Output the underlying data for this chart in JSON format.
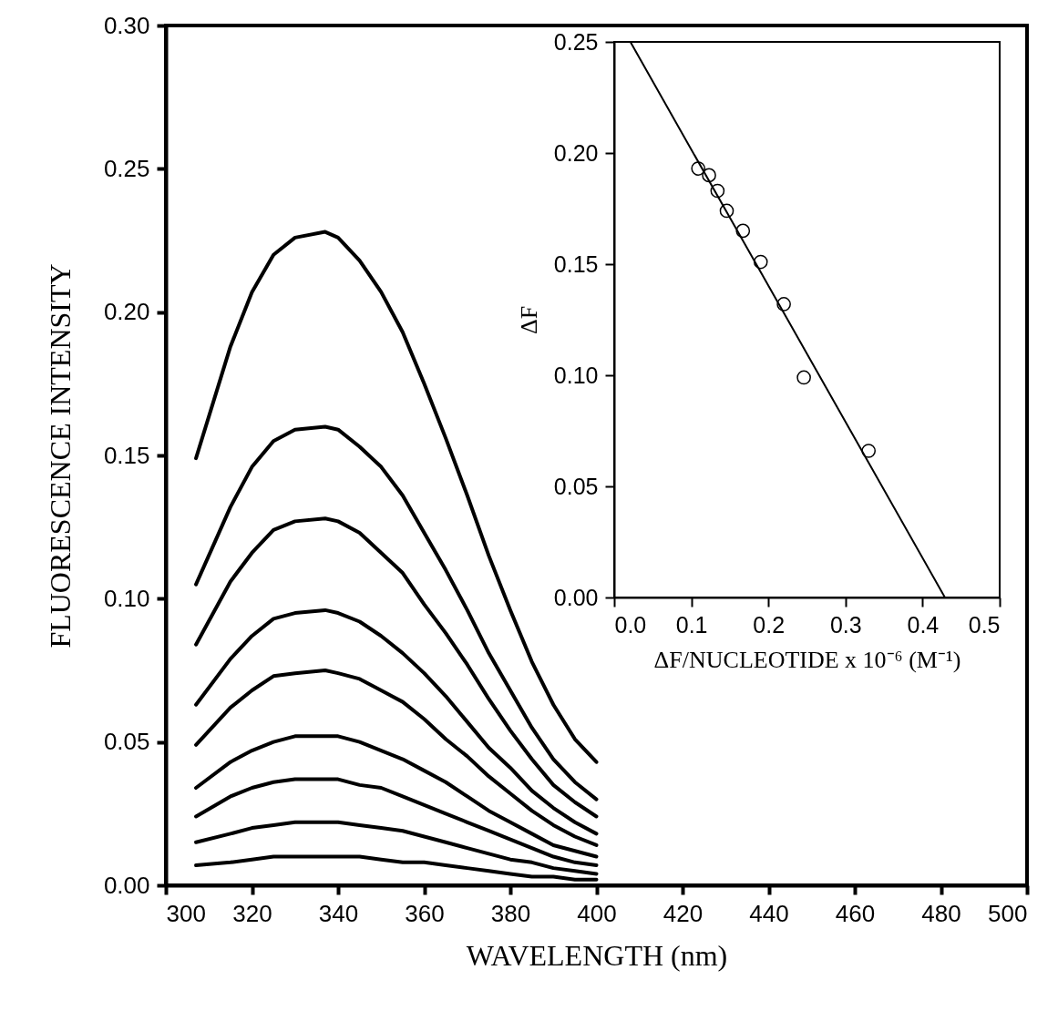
{
  "chart_data": [
    {
      "type": "line",
      "xlabel": "WAVELENGTH  (nm)",
      "ylabel": "FLUORESCENCE  INTENSITY",
      "x": [
        307,
        315,
        320,
        325,
        330,
        337,
        340,
        345,
        350,
        355,
        360,
        365,
        370,
        375,
        380,
        385,
        390,
        395,
        400
      ],
      "xlim": [
        300,
        500
      ],
      "xticks": [
        300,
        320,
        340,
        360,
        380,
        400,
        420,
        440,
        460,
        480,
        500
      ],
      "ylim": [
        0,
        0.3
      ],
      "yticks": [
        {
          "value": 0,
          "label": "0.00"
        },
        {
          "value": 0.05,
          "label": "0.05"
        },
        {
          "value": 0.1,
          "label": "0.10"
        },
        {
          "value": 0.15,
          "label": "0.15"
        },
        {
          "value": 0.2,
          "label": "0.20"
        },
        {
          "value": 0.25,
          "label": "0.25"
        },
        {
          "value": 0.3,
          "label": "0.30"
        }
      ],
      "grid": false,
      "line_style": "solid",
      "series": [
        {
          "color": "#000000",
          "values": [
            0.149,
            0.188,
            0.207,
            0.22,
            0.226,
            0.228,
            0.226,
            0.218,
            0.207,
            0.193,
            0.175,
            0.156,
            0.136,
            0.115,
            0.096,
            0.078,
            0.063,
            0.051,
            0.043
          ]
        },
        {
          "color": "#000000",
          "values": [
            0.105,
            0.132,
            0.146,
            0.155,
            0.159,
            0.16,
            0.159,
            0.153,
            0.146,
            0.136,
            0.123,
            0.11,
            0.096,
            0.081,
            0.068,
            0.055,
            0.044,
            0.036,
            0.03
          ]
        },
        {
          "color": "#000000",
          "values": [
            0.084,
            0.106,
            0.116,
            0.124,
            0.127,
            0.128,
            0.127,
            0.123,
            0.116,
            0.109,
            0.098,
            0.088,
            0.077,
            0.065,
            0.054,
            0.044,
            0.035,
            0.029,
            0.024
          ]
        },
        {
          "color": "#000000",
          "values": [
            0.063,
            0.079,
            0.087,
            0.093,
            0.095,
            0.096,
            0.095,
            0.092,
            0.087,
            0.081,
            0.074,
            0.066,
            0.057,
            0.048,
            0.041,
            0.033,
            0.027,
            0.022,
            0.018
          ]
        },
        {
          "color": "#000000",
          "values": [
            0.049,
            0.062,
            0.068,
            0.073,
            0.074,
            0.075,
            0.074,
            0.072,
            0.068,
            0.064,
            0.058,
            0.051,
            0.045,
            0.038,
            0.032,
            0.026,
            0.021,
            0.017,
            0.014
          ]
        },
        {
          "color": "#000000",
          "values": [
            0.034,
            0.043,
            0.047,
            0.05,
            0.052,
            0.052,
            0.052,
            0.05,
            0.047,
            0.044,
            0.04,
            0.036,
            0.031,
            0.026,
            0.022,
            0.018,
            0.014,
            0.012,
            0.01
          ]
        },
        {
          "color": "#000000",
          "values": [
            0.024,
            0.031,
            0.034,
            0.036,
            0.037,
            0.037,
            0.037,
            0.035,
            0.034,
            0.031,
            0.028,
            0.025,
            0.022,
            0.019,
            0.016,
            0.013,
            0.01,
            0.008,
            0.007
          ]
        },
        {
          "color": "#000000",
          "values": [
            0.015,
            0.018,
            0.02,
            0.021,
            0.022,
            0.022,
            0.022,
            0.021,
            0.02,
            0.019,
            0.017,
            0.015,
            0.013,
            0.011,
            0.009,
            0.008,
            0.006,
            0.005,
            0.004
          ]
        },
        {
          "color": "#000000",
          "values": [
            0.007,
            0.008,
            0.009,
            0.01,
            0.01,
            0.01,
            0.01,
            0.01,
            0.009,
            0.008,
            0.008,
            0.007,
            0.006,
            0.005,
            0.004,
            0.003,
            0.003,
            0.002,
            0.002
          ]
        }
      ]
    },
    {
      "type": "scatter",
      "xlabel": "ΔF/NUCLEOTIDE x 10⁻⁶ (M⁻¹)",
      "ylabel": "ΔF",
      "xlim": [
        0,
        0.5
      ],
      "xticks": [
        {
          "value": 0,
          "label": "0.0"
        },
        {
          "value": 0.1,
          "label": "0.1"
        },
        {
          "value": 0.2,
          "label": "0.2"
        },
        {
          "value": 0.3,
          "label": "0.3"
        },
        {
          "value": 0.4,
          "label": "0.4"
        },
        {
          "value": 0.5,
          "label": "0.5"
        }
      ],
      "ylim": [
        0,
        0.25
      ],
      "yticks": [
        {
          "value": 0,
          "label": "0.00"
        },
        {
          "value": 0.05,
          "label": "0.05"
        },
        {
          "value": 0.1,
          "label": "0.10"
        },
        {
          "value": 0.15,
          "label": "0.15"
        },
        {
          "value": 0.2,
          "label": "0.20"
        },
        {
          "value": 0.25,
          "label": "0.25"
        }
      ],
      "grid": false,
      "series": [
        {
          "color": "#000000",
          "marker": "circle",
          "x": [
            0.109,
            0.123,
            0.134,
            0.146,
            0.167,
            0.19,
            0.22,
            0.246,
            0.33
          ],
          "values": [
            0.193,
            0.19,
            0.183,
            0.174,
            0.165,
            0.151,
            0.132,
            0.099,
            0.066
          ]
        },
        {
          "type": "line",
          "color": "#000000",
          "x": [
            0.021,
            0.429
          ],
          "values": [
            0.25,
            0
          ]
        }
      ]
    }
  ]
}
